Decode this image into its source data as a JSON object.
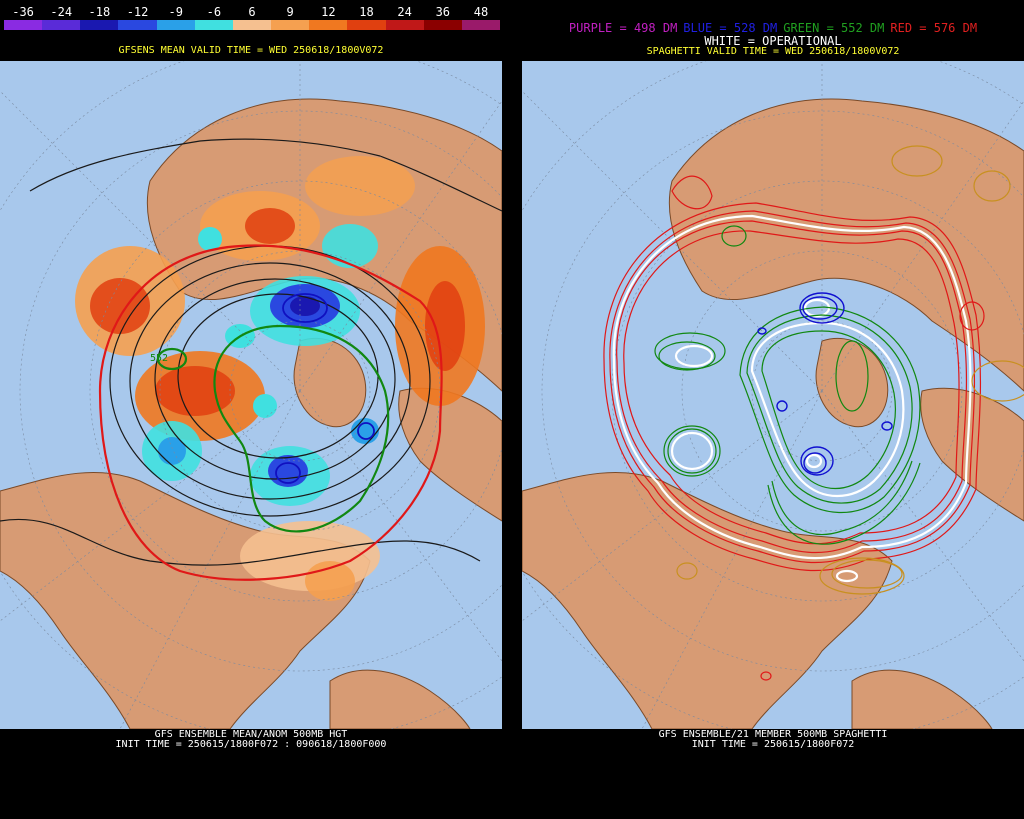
{
  "colorbar": {
    "labels": [
      "-36",
      "-24",
      "-18",
      "-12",
      "-9",
      "-6",
      "6",
      "9",
      "12",
      "18",
      "24",
      "36",
      "48"
    ],
    "colors": [
      "#8a2be2",
      "#5a2bd8",
      "#1a18b0",
      "#2a48e0",
      "#2aa0e8",
      "#40e0e0",
      "#f5c090",
      "#f5a050",
      "#f07820",
      "#e04010",
      "#c01818",
      "#8b0000",
      "#9a1a6a"
    ]
  },
  "left_panel": {
    "title": "GFSENS MEAN VALID TIME = WED 250618/1800V072",
    "footer_line1": "GFS ENSEMBLE MEAN/ANOM 500MB HGT",
    "footer_line2": "INIT TIME = 250615/1800F072 : 090618/1800F000",
    "contour_label": "552"
  },
  "right_panel": {
    "legend": [
      {
        "text": "PURPLE = 498 DM",
        "color": "#c020c0"
      },
      {
        "text": "BLUE = 528 DM",
        "color": "#2020e0"
      },
      {
        "text": "GREEN = 552 DM",
        "color": "#20a020"
      },
      {
        "text": "RED = 576 DM",
        "color": "#e02020"
      }
    ],
    "operational": "WHITE = OPERATIONAL",
    "title": "SPAGHETTI VALID TIME = WED 250618/1800V072",
    "footer_line1": "GFS ENSEMBLE/21 MEMBER 500MB SPAGHETTI",
    "footer_line2": "INIT TIME = 250615/1800F072"
  },
  "colors": {
    "ocean": "#a8c8ec",
    "land": "#d79b74",
    "border": "#7a4a28",
    "grid": "#7a8aa0"
  }
}
